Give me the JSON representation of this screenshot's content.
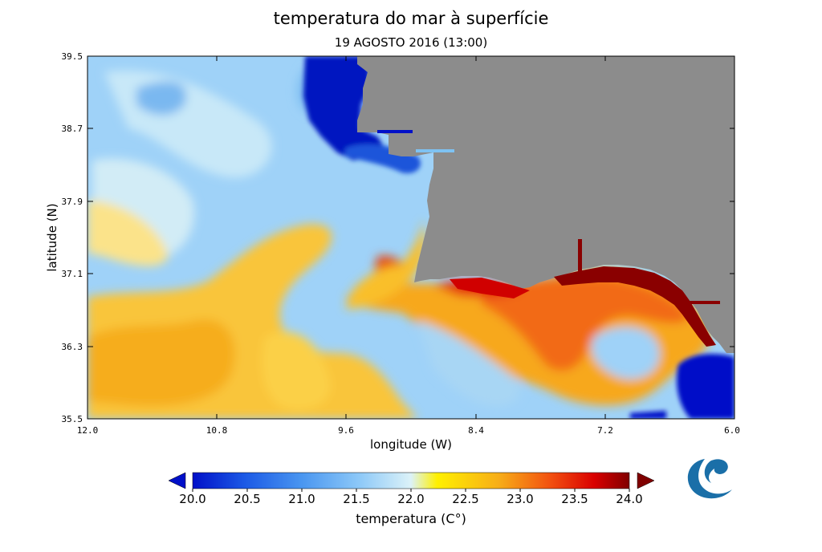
{
  "map": {
    "title": "temperatura do mar à superfície",
    "subtitle": "19 AGOSTO 2016 (13:00)",
    "xlabel": "longitude (W)",
    "ylabel": "latitude  (N)",
    "x_ticks": [
      "12.0",
      "10.8",
      "9.6",
      "8.4",
      "7.2",
      "6.0"
    ],
    "y_ticks": [
      "39.5",
      "38.7",
      "37.9",
      "37.1",
      "36.3",
      "35.5"
    ],
    "lon_range": [
      12.0,
      6.0
    ],
    "lat_range": [
      35.5,
      39.5
    ],
    "land_color": "#8c8c8c"
  },
  "colorbar": {
    "ticks": [
      "20.0",
      "20.5",
      "21.0",
      "21.5",
      "22.0",
      "22.5",
      "23.0",
      "23.5",
      "24.0"
    ],
    "title": "temperatura (C°)",
    "range": [
      20.0,
      24.0
    ],
    "colors": [
      "#0010c8",
      "#1c5ae6",
      "#4a96f0",
      "#8cc8f8",
      "#dcf2f8",
      "#fff000",
      "#f7ae18",
      "#f25010",
      "#d90000",
      "#800000"
    ]
  },
  "logo": {
    "name": "logo-icon"
  }
}
